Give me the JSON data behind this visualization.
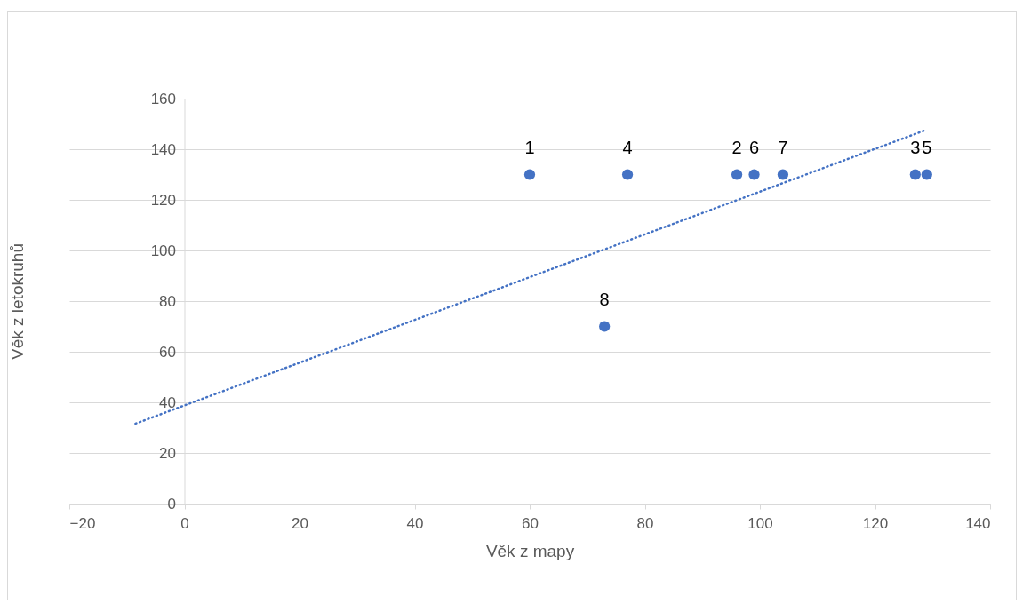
{
  "chart_data": {
    "type": "scatter",
    "xlabel": "Věk z mapy",
    "ylabel": "Věk z  letokruhů",
    "xlim": [
      -20,
      140
    ],
    "ylim": [
      0,
      160
    ],
    "xticks": [
      -20,
      0,
      20,
      40,
      60,
      80,
      100,
      120,
      140
    ],
    "yticks": [
      0,
      20,
      40,
      60,
      80,
      100,
      120,
      140,
      160
    ],
    "grid": "y",
    "series": [
      {
        "marker": "circle",
        "color": "#4472c4",
        "x": [
          60,
          96,
          127,
          77,
          129,
          99,
          104,
          73
        ],
        "values": [
          130,
          130,
          130,
          130,
          130,
          130,
          130,
          70
        ]
      },
      {
        "type": "line",
        "line_style": "dotted",
        "color": "#4472c4",
        "x": [
          -8.5,
          128.6
        ],
        "values": [
          31.6,
          147.4
        ]
      }
    ],
    "annotations": [
      {
        "text": "1",
        "x": 60,
        "y": 130
      },
      {
        "text": "2",
        "x": 96,
        "y": 130
      },
      {
        "text": "3",
        "x": 127,
        "y": 130
      },
      {
        "text": "4",
        "x": 77,
        "y": 130
      },
      {
        "text": "5",
        "x": 129,
        "y": 130
      },
      {
        "text": "6",
        "x": 99,
        "y": 130
      },
      {
        "text": "7",
        "x": 104,
        "y": 130
      },
      {
        "text": "8",
        "x": 73,
        "y": 70
      }
    ]
  }
}
